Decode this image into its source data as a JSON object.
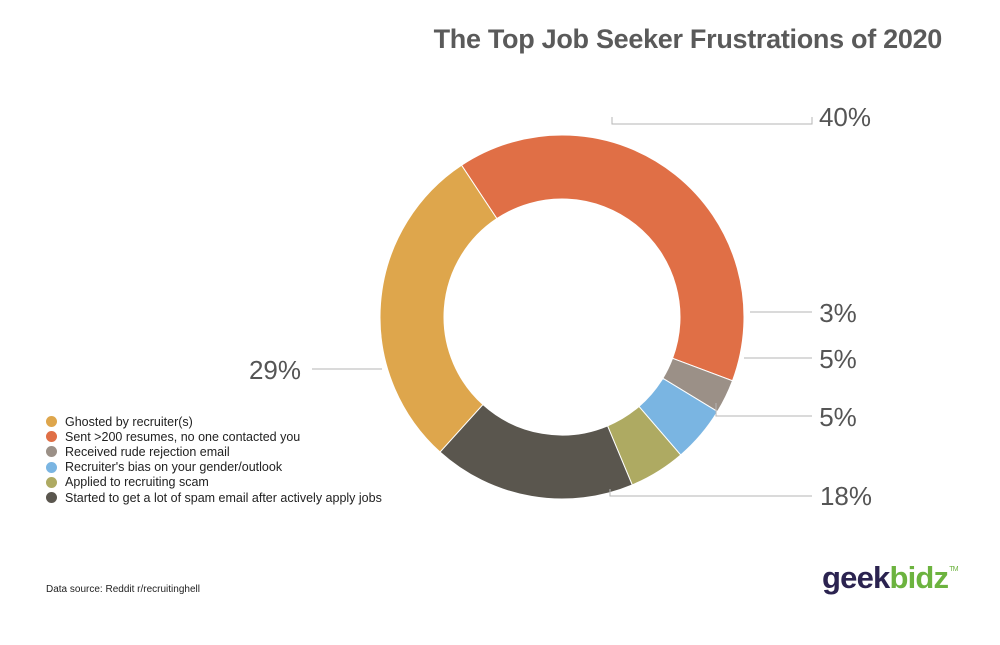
{
  "chart_data": {
    "type": "pie",
    "title": "The Top Job Seeker Frustrations of 2020",
    "donut": true,
    "slices": [
      {
        "label": "Sent >200 resumes, no one contacted you",
        "value": 40,
        "display": "40%",
        "color": "#e06f46"
      },
      {
        "label": "Received rude rejection email",
        "value": 3,
        "display": "3%",
        "color": "#9b9087"
      },
      {
        "label": "Recruiter's bias on your gender/outlook",
        "value": 5,
        "display": "5%",
        "color": "#7ab5e2"
      },
      {
        "label": "Applied to recruiting scam",
        "value": 5,
        "display": "5%",
        "color": "#aeaa62"
      },
      {
        "label": "Started to get a lot of spam email after actively apply jobs",
        "value": 18,
        "display": "18%",
        "color": "#5a564e"
      },
      {
        "label": "Ghosted by recruiter(s)",
        "value": 29,
        "display": "29%",
        "color": "#dea64c"
      }
    ],
    "legend": [
      {
        "label": "Ghosted by recruiter(s)",
        "color": "#dea64c"
      },
      {
        "label": "Sent >200 resumes, no one contacted you",
        "color": "#e06f46"
      },
      {
        "label": "Received rude rejection email",
        "color": "#9b9087"
      },
      {
        "label": "Recruiter's bias on your gender/outlook",
        "color": "#7ab5e2"
      },
      {
        "label": "Applied to recruiting scam",
        "color": "#aeaa62"
      },
      {
        "label": "Started to get a lot of spam email after actively apply jobs",
        "color": "#5a564e"
      }
    ],
    "legend_position": "bottom-left"
  },
  "source": "Data source: Reddit r/recruitinghell",
  "logo": {
    "part1": "geek",
    "part2": "bidz",
    "tm": "TM"
  }
}
